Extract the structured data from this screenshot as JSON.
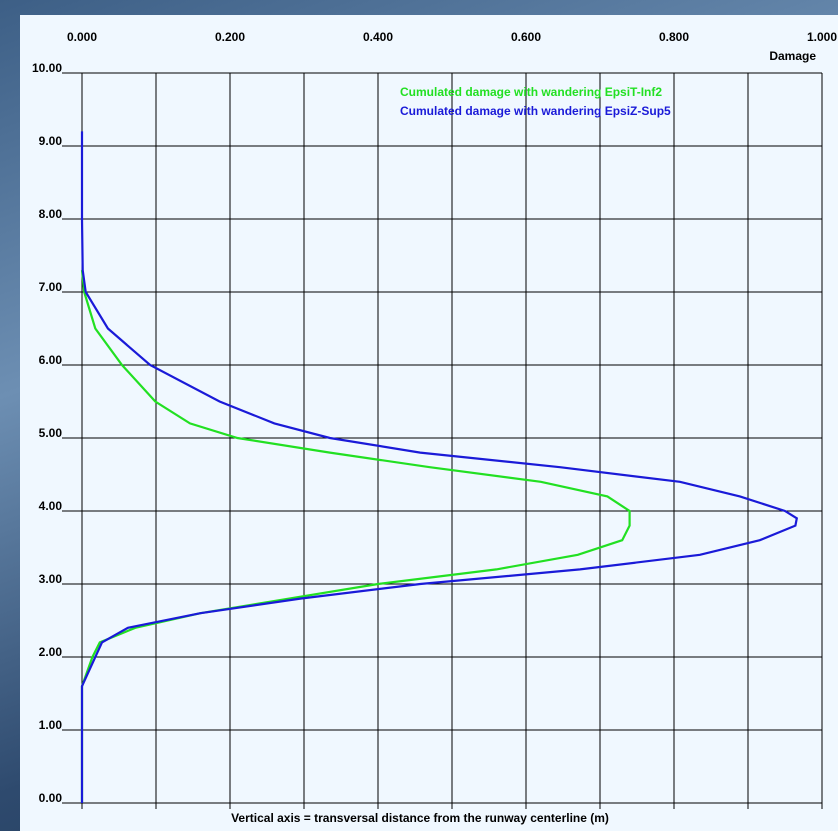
{
  "chart_data": {
    "type": "line",
    "xlabel": "Damage",
    "ylabel": "Vertical axis = transversal distance from the runway centerline (m)",
    "xlim": [
      0,
      1
    ],
    "ylim": [
      0,
      10
    ],
    "xticks": [
      {
        "value": 0,
        "label": "0.000"
      },
      {
        "value": 0.2,
        "label": "0.200"
      },
      {
        "value": 0.4,
        "label": "0.400"
      },
      {
        "value": 0.6,
        "label": "0.600"
      },
      {
        "value": 0.8,
        "label": "0.800"
      },
      {
        "value": 1,
        "label": "1.000"
      }
    ],
    "minor_xticks": [
      0.1,
      0.3,
      0.5,
      0.7,
      0.9
    ],
    "yticks": [
      {
        "value": 0,
        "label": "0.00"
      },
      {
        "value": 1,
        "label": "1.00"
      },
      {
        "value": 2,
        "label": "2.00"
      },
      {
        "value": 3,
        "label": "3.00"
      },
      {
        "value": 4,
        "label": "4.00"
      },
      {
        "value": 5,
        "label": "5.00"
      },
      {
        "value": 6,
        "label": "6.00"
      },
      {
        "value": 7,
        "label": "7.00"
      },
      {
        "value": 8,
        "label": "8.00"
      },
      {
        "value": 9,
        "label": "9.00"
      },
      {
        "value": 10,
        "label": "10.00"
      }
    ],
    "grid": true,
    "series": [
      {
        "name": "Cumulated damage with wandering EpsiT-Inf2",
        "color": "#22e022",
        "y": [
          0,
          1.6,
          2.0,
          2.2,
          2.4,
          2.6,
          2.8,
          3.0,
          3.2,
          3.4,
          3.6,
          3.8,
          4.0,
          4.2,
          4.4,
          4.6,
          4.8,
          5.0,
          5.2,
          5.5,
          6.0,
          6.5,
          7.0,
          7.3
        ],
        "values": [
          0,
          0,
          0.014,
          0.024,
          0.072,
          0.16,
          0.28,
          0.4,
          0.56,
          0.67,
          0.73,
          0.74,
          0.74,
          0.71,
          0.62,
          0.47,
          0.335,
          0.21,
          0.146,
          0.099,
          0.054,
          0.018,
          0.003,
          0
        ]
      },
      {
        "name": "Cumulated damage with wandering EpsiZ-Sup5",
        "color": "#1a1ad8",
        "y": [
          0,
          1.6,
          2.0,
          2.2,
          2.4,
          2.6,
          2.8,
          3.0,
          3.2,
          3.4,
          3.6,
          3.8,
          3.9,
          4.0,
          4.2,
          4.4,
          4.6,
          4.8,
          5.0,
          5.2,
          5.5,
          6.0,
          6.5,
          7.0,
          7.3,
          8.0,
          9.2
        ],
        "values": [
          0,
          0,
          0.018,
          0.027,
          0.062,
          0.16,
          0.295,
          0.457,
          0.673,
          0.835,
          0.916,
          0.964,
          0.966,
          0.95,
          0.889,
          0.808,
          0.646,
          0.457,
          0.335,
          0.26,
          0.186,
          0.092,
          0.035,
          0.005,
          0.001,
          0,
          0
        ]
      }
    ]
  }
}
